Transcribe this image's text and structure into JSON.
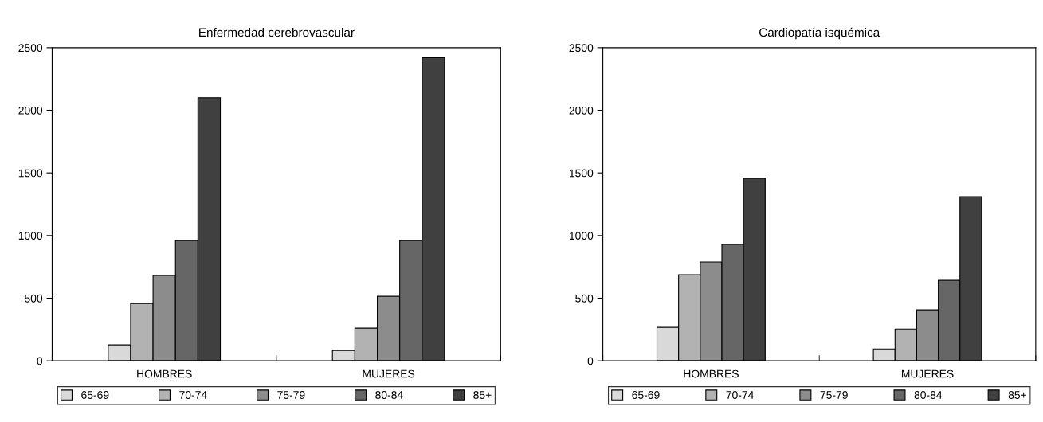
{
  "chart_data": [
    {
      "type": "bar",
      "title": "Enfermedad cerebrovascular",
      "categories": [
        "HOMBRES",
        "MUJERES"
      ],
      "series": [
        {
          "name": "65-69",
          "color": "#d9d9d9",
          "values": [
            127,
            83
          ]
        },
        {
          "name": "70-74",
          "color": "#b2b2b2",
          "values": [
            458,
            261
          ]
        },
        {
          "name": "75-79",
          "color": "#8c8c8c",
          "values": [
            681,
            515
          ]
        },
        {
          "name": "80-84",
          "color": "#666666",
          "values": [
            960,
            960
          ]
        },
        {
          "name": "85+",
          "color": "#404040",
          "values": [
            2100,
            2420
          ]
        }
      ],
      "ylim": [
        0,
        2500
      ],
      "yticks": [
        0,
        500,
        1000,
        1500,
        2000,
        2500
      ],
      "grid": false,
      "legend": "bottom"
    },
    {
      "type": "bar",
      "title": "Cardiopatía isquémica",
      "categories": [
        "HOMBRES",
        "MUJERES"
      ],
      "series": [
        {
          "name": "65-69",
          "color": "#d9d9d9",
          "values": [
            267,
            95
          ]
        },
        {
          "name": "70-74",
          "color": "#b2b2b2",
          "values": [
            687,
            254
          ]
        },
        {
          "name": "75-79",
          "color": "#8c8c8c",
          "values": [
            789,
            407
          ]
        },
        {
          "name": "80-84",
          "color": "#666666",
          "values": [
            929,
            642
          ]
        },
        {
          "name": "85+",
          "color": "#404040",
          "values": [
            1457,
            1310
          ]
        }
      ],
      "ylim": [
        0,
        2500
      ],
      "yticks": [
        0,
        500,
        1000,
        1500,
        2000,
        2500
      ],
      "grid": false,
      "legend": "bottom"
    }
  ]
}
